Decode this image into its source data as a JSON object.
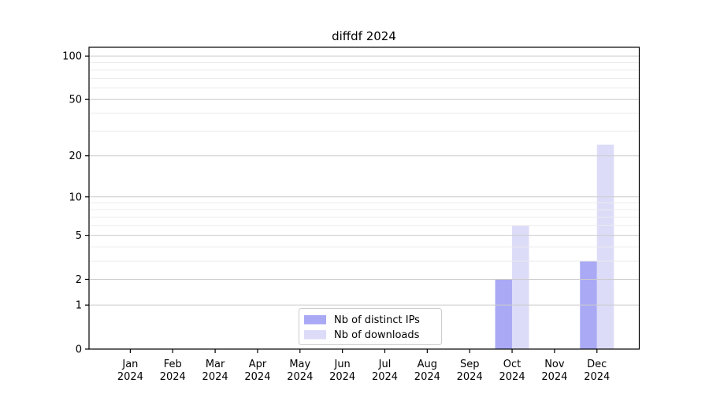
{
  "chart_data": {
    "type": "bar",
    "title": "diffdf 2024",
    "categories": [
      "Jan",
      "Feb",
      "Mar",
      "Apr",
      "May",
      "Jun",
      "Jul",
      "Aug",
      "Sep",
      "Oct",
      "Nov",
      "Dec"
    ],
    "x_year": "2024",
    "series": [
      {
        "name": "Nb of distinct IPs",
        "color": "#a9a9f5",
        "values": [
          0,
          0,
          0,
          0,
          0,
          0,
          0,
          0,
          0,
          2,
          0,
          3
        ]
      },
      {
        "name": "Nb of downloads",
        "color": "#dcdcf8",
        "values": [
          0,
          0,
          0,
          0,
          0,
          0,
          0,
          0,
          0,
          6,
          0,
          24
        ]
      }
    ],
    "yscale": "log1p",
    "ylim": [
      0,
      115
    ],
    "yticks": [
      0,
      1,
      2,
      5,
      10,
      20,
      50,
      100
    ],
    "minor_yticks": [
      3,
      4,
      6,
      7,
      8,
      9,
      30,
      40,
      60,
      70,
      80,
      90
    ],
    "grid": true,
    "legend_position": "lower center",
    "xlabel": "",
    "ylabel": ""
  },
  "colors": {
    "background": "#ffffff",
    "axis": "#000000",
    "grid_major": "#cccccc",
    "grid_minor": "#ececec",
    "legend_border": "#cccccc",
    "legend_background": "#ffffff"
  }
}
